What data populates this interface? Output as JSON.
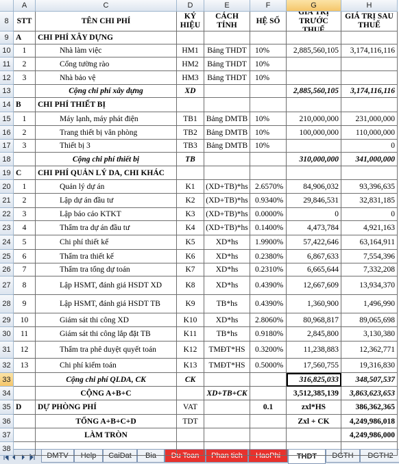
{
  "columns": [
    "A",
    "C",
    "D",
    "E",
    "F",
    "G",
    "H"
  ],
  "rows": [
    {
      "num": "8",
      "cells": [
        "STT",
        "TÊN CHI PHÍ",
        "KÝ HIỆU",
        "CÁCH TÍNH",
        "HỆ SỐ",
        "GIÁ TRỊ TRƯỚC THUẾ",
        "GIÁ TRỊ SAU THUẾ"
      ]
    },
    {
      "num": "9",
      "cells": [
        "A",
        "CHI PHÍ XÂY DỰNG",
        null,
        null,
        null,
        null,
        null
      ]
    },
    {
      "num": "10",
      "cells": [
        "1",
        "Nhà làm việc",
        "HM1",
        "Bảng THDT",
        "10%",
        "2,885,560,105",
        "3,174,116,116"
      ]
    },
    {
      "num": "11",
      "cells": [
        "2",
        "Cổng tường rào",
        "HM2",
        "Bảng THDT",
        "10%",
        null,
        null
      ]
    },
    {
      "num": "12",
      "cells": [
        "3",
        "Nhà bảo vệ",
        "HM3",
        "Bảng THDT",
        "10%",
        null,
        null
      ]
    },
    {
      "num": "13",
      "cells": [
        null,
        "Cộng chi phí xây dựng",
        "XD",
        null,
        null,
        "2,885,560,105",
        "3,174,116,116"
      ]
    },
    {
      "num": "14",
      "cells": [
        "B",
        "CHI PHÍ THIẾT BỊ",
        null,
        null,
        null,
        null,
        null
      ]
    },
    {
      "num": "15",
      "cells": [
        "1",
        "Máy lạnh, máy phát điện",
        "TB1",
        "Bảng DMTB",
        "10%",
        "210,000,000",
        "231,000,000"
      ]
    },
    {
      "num": "16",
      "cells": [
        "2",
        "Trang thiết bị văn phòng",
        "TB2",
        "Bảng DMTB",
        "10%",
        "100,000,000",
        "110,000,000"
      ]
    },
    {
      "num": "17",
      "cells": [
        "3",
        "Thiết bị 3",
        "TB3",
        "Bảng DMTB",
        "10%",
        null,
        "0"
      ]
    },
    {
      "num": "18",
      "cells": [
        null,
        "Cộng chi phí thiết bị",
        "TB",
        null,
        null,
        "310,000,000",
        "341,000,000"
      ]
    },
    {
      "num": "19",
      "cells": [
        "C",
        "CHI PHÍ QUẢN LÝ DA, CHI KHÁC",
        null,
        null,
        null,
        null,
        null
      ]
    },
    {
      "num": "20",
      "cells": [
        "1",
        "Quản lý dự án",
        "K1",
        "(XD+TB)*hs",
        "2.6570%",
        "84,906,032",
        "93,396,635"
      ]
    },
    {
      "num": "21",
      "cells": [
        "2",
        "Lập dự án đầu tư",
        "K2",
        "(XD+TB)*hs",
        "0.9340%",
        "29,846,531",
        "32,831,185"
      ]
    },
    {
      "num": "22",
      "cells": [
        "3",
        "Lập báo cáo KTKT",
        "K3",
        "(XD+TB)*hs",
        "0.0000%",
        "0",
        "0"
      ]
    },
    {
      "num": "23",
      "cells": [
        "4",
        "Thẩm tra dự án đầu tư",
        "K4",
        "(XD+TB)*hs",
        "0.1400%",
        "4,473,784",
        "4,921,163"
      ]
    },
    {
      "num": "24",
      "cells": [
        "5",
        "Chi phí thiết kế",
        "K5",
        "XD*hs",
        "1.9900%",
        "57,422,646",
        "63,164,911"
      ]
    },
    {
      "num": "25",
      "cells": [
        "6",
        "Thẩm tra thiết kế",
        "K6",
        "XD*hs",
        "0.2380%",
        "6,867,633",
        "7,554,396"
      ]
    },
    {
      "num": "26",
      "cells": [
        "7",
        "Thẩm tra tổng dự toán",
        "K7",
        "XD*hs",
        "0.2310%",
        "6,665,644",
        "7,332,208"
      ]
    },
    {
      "num": "27",
      "cells": [
        "8",
        "Lập HSMT, đánh giá HSDT XD",
        "K8",
        "XD*hs",
        "0.4390%",
        "12,667,609",
        "13,934,370"
      ]
    },
    {
      "num": "28",
      "cells": [
        "9",
        "Lập HSMT, đánh giá HSDT TB",
        "K9",
        "TB*hs",
        "0.4390%",
        "1,360,900",
        "1,496,990"
      ]
    },
    {
      "num": "29",
      "cells": [
        "10",
        "Giám sát thi công XD",
        "K10",
        "XD*hs",
        "2.8060%",
        "80,968,817",
        "89,065,698"
      ]
    },
    {
      "num": "30",
      "cells": [
        "11",
        "Giám sát thi công lắp đặt TB",
        "K11",
        "TB*hs",
        "0.9180%",
        "2,845,800",
        "3,130,380"
      ]
    },
    {
      "num": "31",
      "cells": [
        "12",
        "Thẩm tra phê duyệt quyết toán",
        "K12",
        "TMĐT*HS",
        "0.3200%",
        "11,238,883",
        "12,362,771"
      ]
    },
    {
      "num": "32",
      "cells": [
        "13",
        "Chi phí kiểm toán",
        "K13",
        "TMĐT*HS",
        "0.5000%",
        "17,560,755",
        "19,316,830"
      ]
    },
    {
      "num": "33",
      "cells": [
        null,
        "Cộng chi phí QLDA, CK",
        "CK",
        null,
        null,
        "316,825,033",
        "348,507,537"
      ]
    },
    {
      "num": "34",
      "cells": [
        null,
        "CỘNG A+B+C",
        null,
        "XD+TB+CK",
        null,
        "3,512,385,139",
        "3,863,623,653"
      ]
    },
    {
      "num": "35",
      "cells": [
        "D",
        "DỰ PHÒNG PHÍ",
        "VAT",
        null,
        "0.1",
        "zxl*HS",
        "386,362,365"
      ]
    },
    {
      "num": "36",
      "cells": [
        null,
        "TỔNG A+B+C+D",
        "TDT",
        null,
        null,
        "Zxl + CK",
        "4,249,986,018"
      ]
    },
    {
      "num": "37",
      "cells": [
        null,
        "LÀM TRÒN",
        null,
        null,
        null,
        null,
        "4,249,986,000"
      ]
    },
    {
      "num": "38",
      "cells": [
        null,
        null,
        null,
        null,
        null,
        null,
        null
      ]
    }
  ],
  "tabs": [
    "DMTV",
    "Help",
    "CaiDat",
    "Bia",
    "Du Toan",
    "Phan tich",
    "HaoPhi",
    "THDT",
    "DGTH",
    "DGTH2"
  ]
}
